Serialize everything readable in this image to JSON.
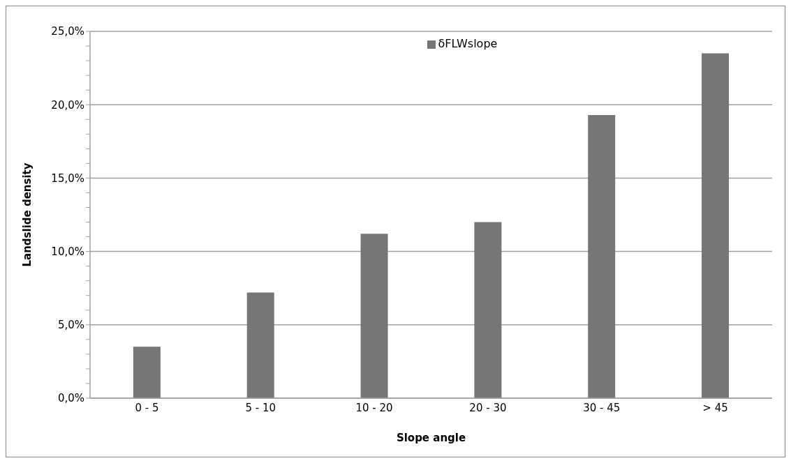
{
  "chart_data": {
    "type": "bar",
    "xlabel": "Slope angle",
    "ylabel": "Landslide density",
    "categories": [
      "0 - 5",
      "5 - 10",
      "10 - 20",
      "20 - 30",
      "30 - 45",
      "> 45"
    ],
    "series": [
      {
        "name": "δFLWslope",
        "color": "#767676",
        "values": [
          3.5,
          7.2,
          11.2,
          12.0,
          19.3,
          23.5
        ]
      }
    ],
    "ylim": [
      0,
      25
    ],
    "yticks": [
      {
        "value": 0,
        "label": "0,0%"
      },
      {
        "value": 1,
        "label": null
      },
      {
        "value": 2,
        "label": null
      },
      {
        "value": 3,
        "label": null
      },
      {
        "value": 4,
        "label": null
      },
      {
        "value": 5,
        "label": "5,0%"
      },
      {
        "value": 6,
        "label": null
      },
      {
        "value": 7,
        "label": null
      },
      {
        "value": 8,
        "label": null
      },
      {
        "value": 9,
        "label": null
      },
      {
        "value": 10,
        "label": "10,0%"
      },
      {
        "value": 11,
        "label": null
      },
      {
        "value": 12,
        "label": null
      },
      {
        "value": 13,
        "label": null
      },
      {
        "value": 14,
        "label": null
      },
      {
        "value": 15,
        "label": "15,0%"
      },
      {
        "value": 16,
        "label": null
      },
      {
        "value": 17,
        "label": null
      },
      {
        "value": 18,
        "label": null
      },
      {
        "value": 19,
        "label": null
      },
      {
        "value": 20,
        "label": "20,0%"
      },
      {
        "value": 21,
        "label": null
      },
      {
        "value": 22,
        "label": null
      },
      {
        "value": 23,
        "label": null
      },
      {
        "value": 24,
        "label": null
      },
      {
        "value": 25,
        "label": "25,0%"
      }
    ],
    "grid": "y",
    "legend": "top"
  }
}
